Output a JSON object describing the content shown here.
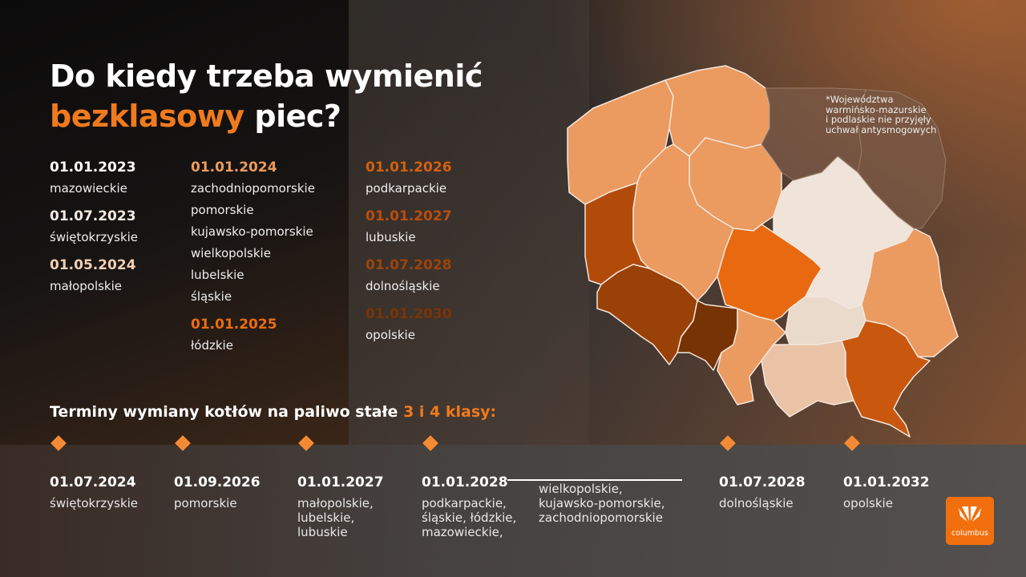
{
  "title": {
    "line1": "Do kiedy trzeba wymienić",
    "accent": "bezklasowy",
    "rest": " piec?"
  },
  "columns": [
    [
      {
        "date": "01.01.2023",
        "color": "#ffffff",
        "regions": [
          "mazowieckie"
        ]
      },
      {
        "date": "01.07.2023",
        "color": "#f5ebe2",
        "regions": [
          "świętokrzyskie"
        ]
      },
      {
        "date": "01.05.2024",
        "color": "#f2cfb3",
        "regions": [
          "małopolskie"
        ]
      }
    ],
    [
      {
        "date": "01.01.2024",
        "color": "#ee9a5c",
        "regions": [
          "zachodniopomorskie",
          "pomorskie",
          "kujawsko-pomorskie",
          "wielkopolskie",
          "lubelskie",
          "śląskie"
        ]
      },
      {
        "date": "01.01.2025",
        "color": "#ec6d12",
        "regions": [
          "łódzkie"
        ]
      }
    ],
    [
      {
        "date": "01.01.2026",
        "color": "#d3600f",
        "regions": [
          "podkarpackie"
        ]
      },
      {
        "date": "01.01.2027",
        "color": "#b94e0c",
        "regions": [
          "lubuskie"
        ]
      },
      {
        "date": "01.07.2028",
        "color": "#9c440b",
        "regions": [
          "dolnośląskie"
        ]
      },
      {
        "date": "01.01.2030",
        "color": "#7a3407",
        "regions": [
          "opolskie"
        ]
      }
    ]
  ],
  "subtitle": {
    "text": "Terminy wymiany kotłów na paliwo stałe ",
    "accent": "3 i 4 klasy:"
  },
  "timeline": [
    {
      "date": "01.07.2024",
      "regions": "świętokrzyskie"
    },
    {
      "date": "01.09.2026",
      "regions": "pomorskie"
    },
    {
      "date": "01.01.2027",
      "regions": "małopolskie,\nlubelskie,\nlubuskie"
    },
    {
      "date": "01.01.2028",
      "regions": "podkarpackie,\nśląskie, łódzkie,\nmazowieckie,",
      "regions_cont": "wielkopolskie,\nkujawsko-pomorskie,\nzachodniopomorskie"
    },
    {
      "date": "01.07.2028",
      "regions": "dolnośląskie"
    },
    {
      "date": "01.01.2032",
      "regions": "opolskie"
    }
  ],
  "footnote": "*Województwa\nwarmińsko-mazurskie\ni podlaskie nie przyjęły\nuchwał antysmogowych",
  "logo": "columbus",
  "colors": {
    "accent": "#f07a1e",
    "logo": "#f26f0d"
  },
  "map_regions": [
    {
      "name": "zachodniopomorskie",
      "color": "#eb9a60"
    },
    {
      "name": "pomorskie",
      "color": "#eb9a60"
    },
    {
      "name": "kujawsko-pomorskie",
      "color": "#eb9a60"
    },
    {
      "name": "wielkopolskie",
      "color": "#eb9a60"
    },
    {
      "name": "lubuskie",
      "color": "#b24b0a"
    },
    {
      "name": "dolnośląskie",
      "color": "#9a4108"
    },
    {
      "name": "opolskie",
      "color": "#763304"
    },
    {
      "name": "śląskie",
      "color": "#eb9a60"
    },
    {
      "name": "łódzkie",
      "color": "#e8690f"
    },
    {
      "name": "mazowieckie",
      "color": "#f0e4da"
    },
    {
      "name": "lubelskie",
      "color": "#eb9a60"
    },
    {
      "name": "świętokrzyskie",
      "color": "#eadacc"
    },
    {
      "name": "małopolskie",
      "color": "#eac3a6"
    },
    {
      "name": "podkarpackie",
      "color": "#c9570e"
    },
    {
      "name": "warmińsko-mazurskie",
      "color": "#7b5a47"
    },
    {
      "name": "podlaskie",
      "color": "#7b5a47"
    }
  ]
}
